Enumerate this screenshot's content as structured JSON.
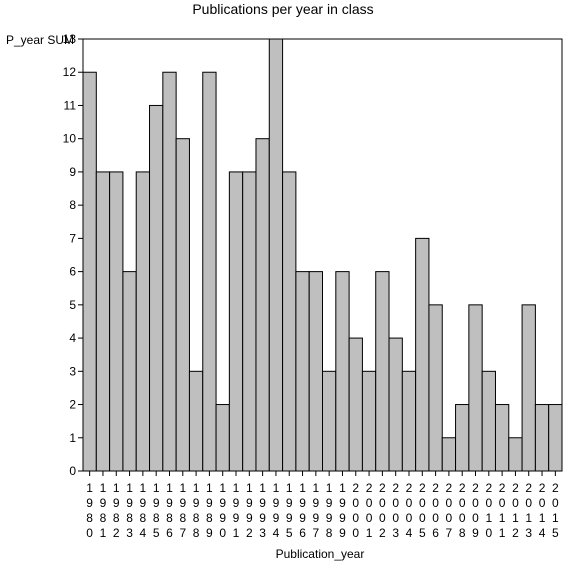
{
  "chart_data": {
    "type": "bar",
    "title": "Publications per year in class",
    "ylabel": "P_year SUM",
    "xlabel": "Publication_year",
    "categories": [
      "1980",
      "1981",
      "1982",
      "1983",
      "1984",
      "1985",
      "1986",
      "1987",
      "1988",
      "1989",
      "1990",
      "1991",
      "1992",
      "1993",
      "1994",
      "1995",
      "1996",
      "1997",
      "1998",
      "1999",
      "2000",
      "2001",
      "2002",
      "2003",
      "2004",
      "2005",
      "2006",
      "2007",
      "2008",
      "2009",
      "2010",
      "2011",
      "2012",
      "2013",
      "2014",
      "2015"
    ],
    "values": [
      12,
      9,
      9,
      6,
      9,
      11,
      12,
      10,
      3,
      12,
      2,
      9,
      9,
      10,
      13,
      9,
      6,
      6,
      3,
      6,
      4,
      3,
      6,
      4,
      3,
      7,
      5,
      1,
      2,
      5,
      3,
      2,
      1,
      5,
      2,
      2
    ],
    "ylim": [
      0,
      13
    ],
    "yticks": [
      0,
      1,
      2,
      3,
      4,
      5,
      6,
      7,
      8,
      9,
      10,
      11,
      12,
      13
    ],
    "grid": false,
    "bar_color": "#bfbfbf",
    "edge_color": "#000000"
  }
}
